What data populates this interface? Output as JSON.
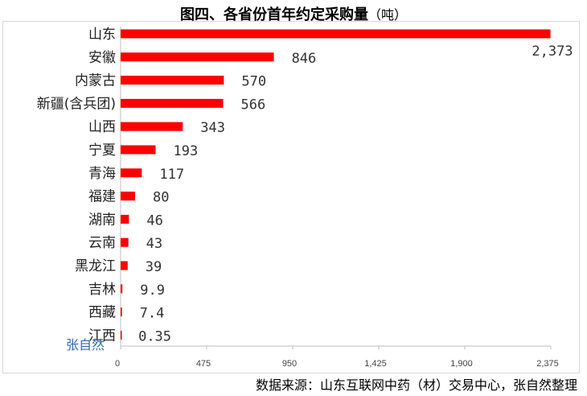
{
  "chart_data": {
    "type": "bar",
    "orientation": "horizontal",
    "title": "图四、各省份首年约定采购量",
    "title_unit": "（吨）",
    "categories": [
      "山东",
      "安徽",
      "内蒙古",
      "新疆(含兵团)",
      "山西",
      "宁夏",
      "青海",
      "福建",
      "湖南",
      "云南",
      "黑龙江",
      "吉林",
      "西藏",
      "江西"
    ],
    "values": [
      2373,
      846,
      570,
      566,
      343,
      193,
      117,
      80,
      46,
      43,
      39,
      9.9,
      7.4,
      0.35
    ],
    "value_labels": [
      "2,373",
      "846",
      "570",
      "566",
      "343",
      "193",
      "117",
      "80",
      "46",
      "43",
      "39",
      "9.9",
      "7.4",
      "0.35"
    ],
    "xlim": [
      0,
      2375
    ],
    "xticks": [
      0,
      475,
      950,
      1425,
      1900,
      2375
    ],
    "xtick_labels": [
      "0",
      "475",
      "950",
      "1,425",
      "1,900",
      "2,375"
    ],
    "bar_color": "#ff0000",
    "grid": false,
    "xlabel": "",
    "ylabel": ""
  },
  "source_text": "数据来源：山东互联网中药（材）交易中心，张自然整理",
  "watermark_text": "张自然"
}
